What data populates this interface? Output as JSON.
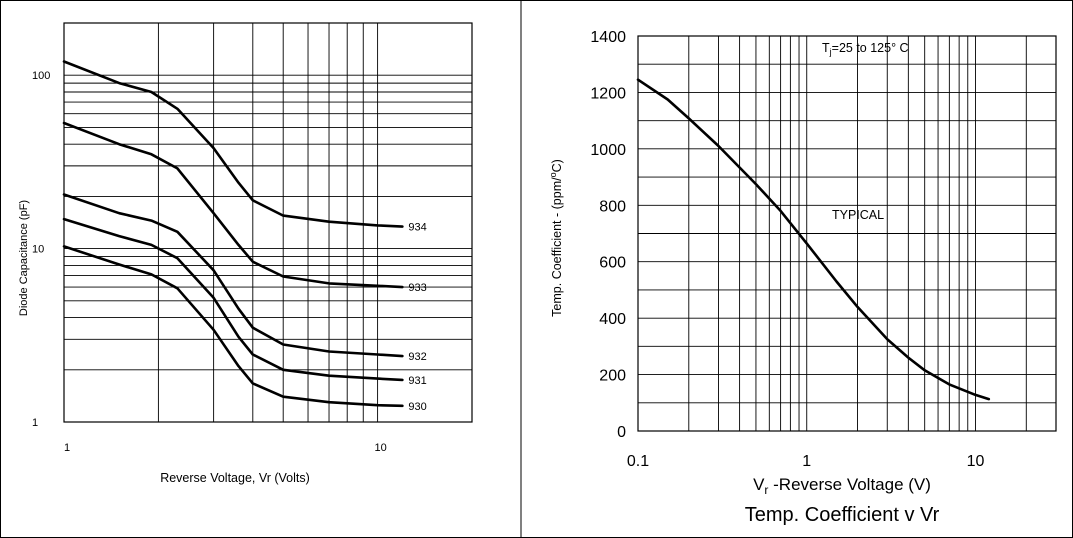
{
  "chart_data": [
    {
      "type": "line",
      "xlabel": "Reverse Voltage, Vr (Volts)",
      "ylabel": "Diode Capacitance (pF)",
      "x_scale": "log",
      "y_scale": "log",
      "xlim": [
        1,
        20
      ],
      "ylim": [
        1,
        200
      ],
      "x_ticks": [
        {
          "value": 1,
          "label": "1"
        },
        {
          "value": 10,
          "label": "10"
        }
      ],
      "y_ticks": [
        {
          "value": 1,
          "label": "1"
        },
        {
          "value": 10,
          "label": "10"
        },
        {
          "value": 100,
          "label": "100"
        }
      ],
      "grid": true,
      "series": [
        {
          "name": "934",
          "x": [
            1,
            1.5,
            1.9,
            2.3,
            3.0,
            3.6,
            4.0,
            5.0,
            7.0,
            10.0,
            12.0
          ],
          "y": [
            120,
            90,
            80,
            64,
            38,
            24,
            19,
            15.5,
            14.3,
            13.6,
            13.4
          ]
        },
        {
          "name": "933",
          "x": [
            1,
            1.5,
            1.9,
            2.3,
            3.0,
            3.6,
            4.0,
            5.0,
            7.0,
            10.0,
            12.0
          ],
          "y": [
            53,
            40,
            35,
            29,
            16,
            10.5,
            8.4,
            6.9,
            6.3,
            6.1,
            6.0
          ]
        },
        {
          "name": "932",
          "x": [
            1,
            1.5,
            1.9,
            2.3,
            3.0,
            3.6,
            4.0,
            5.0,
            7.0,
            10.0,
            12.0
          ],
          "y": [
            20.5,
            16,
            14.5,
            12.5,
            7.5,
            4.5,
            3.5,
            2.8,
            2.55,
            2.45,
            2.4
          ]
        },
        {
          "name": "931",
          "x": [
            1,
            1.5,
            1.9,
            2.3,
            3.0,
            3.6,
            4.0,
            5.0,
            7.0,
            10.0,
            12.0
          ],
          "y": [
            14.8,
            11.8,
            10.5,
            8.8,
            5.2,
            3.1,
            2.45,
            2.0,
            1.85,
            1.78,
            1.75
          ]
        },
        {
          "name": "930",
          "x": [
            1,
            1.5,
            1.9,
            2.3,
            3.0,
            3.6,
            4.0,
            5.0,
            7.0,
            10.0,
            12.0
          ],
          "y": [
            10.3,
            8.1,
            7.1,
            5.9,
            3.4,
            2.1,
            1.67,
            1.4,
            1.3,
            1.25,
            1.24
          ]
        }
      ]
    },
    {
      "type": "line",
      "title": "Temp. Coefficient v Vr",
      "xlabel_prefix": "V",
      "xlabel_sub": "r",
      "xlabel_rest": " -Reverse Voltage (V)",
      "ylabel_main": "Temp. Coefficient - (ppm/",
      "ylabel_sup": "o",
      "ylabel_end": "C)",
      "x_scale": "log",
      "y_scale": "linear",
      "xlim": [
        0.1,
        30
      ],
      "ylim": [
        0,
        1400
      ],
      "x_ticks": [
        {
          "value": 0.1,
          "label": "0.1"
        },
        {
          "value": 1,
          "label": "1"
        },
        {
          "value": 10,
          "label": "10"
        }
      ],
      "y_ticks": [
        0,
        200,
        400,
        600,
        800,
        1000,
        1200,
        1400
      ],
      "grid": true,
      "annotations": {
        "condition_prefix": "T",
        "condition_sub": "j",
        "condition_rest": "=25 to 125° C",
        "typical": "TYPICAL"
      },
      "series": [
        {
          "x": [
            0.1,
            0.15,
            0.2,
            0.3,
            0.5,
            0.7,
            1.0,
            1.5,
            2.0,
            3.0,
            4.0,
            5.0,
            7.0,
            10.0,
            12.0
          ],
          "y": [
            1245,
            1175,
            1108,
            1010,
            875,
            780,
            665,
            530,
            440,
            325,
            260,
            215,
            165,
            128,
            113
          ]
        }
      ]
    }
  ]
}
